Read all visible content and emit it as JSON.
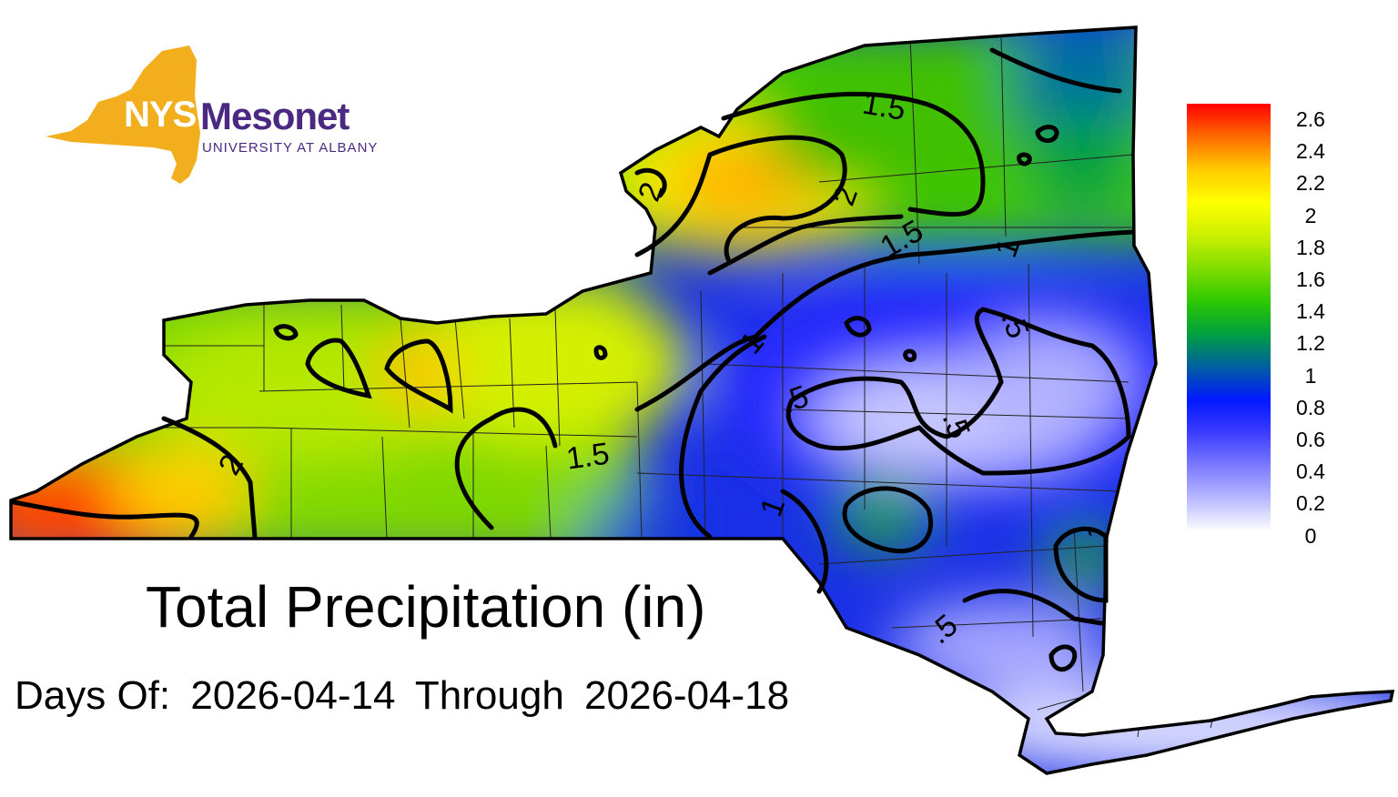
{
  "logo": {
    "name": "NYS",
    "network": "Mesonet",
    "institution": "UNIVERSITY AT ALBANY"
  },
  "title": "Total Precipitation (in)",
  "date_range": {
    "prefix": "Days Of:",
    "start": "2026-04-14",
    "separator": "Through",
    "end": "2026-04-18"
  },
  "legend": {
    "unit": "in",
    "ticks": [
      "2.6",
      "2.4",
      "2.2",
      "2",
      "1.8",
      "1.6",
      "1.4",
      "1.2",
      "1",
      "0.8",
      "0.6",
      "0.4",
      "0.2",
      "0"
    ],
    "colors": [
      "#ff0000",
      "#ff6a00",
      "#ffcc00",
      "#ffff00",
      "#ccf000",
      "#80dd00",
      "#2ec800",
      "#00a040",
      "#0060a0",
      "#0018ff",
      "#3c3cff",
      "#7a7aff",
      "#b8b8ff",
      "#ffffff"
    ]
  },
  "contour_labels": [
    {
      "text": "1.5"
    },
    {
      "text": "1.5"
    },
    {
      "text": "1.5"
    },
    {
      "text": "2"
    },
    {
      "text": "2"
    },
    {
      "text": "2"
    },
    {
      "text": "1"
    },
    {
      "text": "1"
    },
    {
      "text": "1"
    },
    {
      "text": "1"
    },
    {
      "text": ".5"
    },
    {
      "text": ".5"
    },
    {
      "text": ".5"
    },
    {
      "text": ".5"
    }
  ]
}
